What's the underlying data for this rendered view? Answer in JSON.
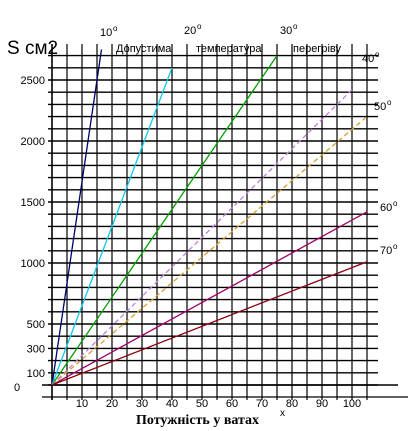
{
  "chart_data": {
    "type": "line",
    "ylabel": "S см2",
    "xlabel": "Потужність у ватах",
    "xlabel_suffix": "x",
    "annotation": [
      "Допустима",
      "температура",
      "перегріву"
    ],
    "degree_symbol": "o",
    "xlim": [
      0,
      105
    ],
    "ylim": [
      0,
      2750
    ],
    "x_ticks": [
      10,
      20,
      30,
      40,
      50,
      60,
      70,
      80,
      90,
      100
    ],
    "y_ticks": [
      0,
      100,
      300,
      500,
      1000,
      1500,
      2000,
      2500
    ],
    "grid": true,
    "series": [
      {
        "name": "10",
        "color": "#00006a",
        "x": [
          0,
          16.5
        ],
        "y": [
          0,
          2750
        ]
      },
      {
        "name": "20",
        "color": "#10c8e8",
        "x": [
          0,
          40
        ],
        "y": [
          0,
          2600
        ]
      },
      {
        "name": "30",
        "color": "#00a000",
        "x": [
          0,
          75
        ],
        "y": [
          0,
          2700
        ]
      },
      {
        "name": "40",
        "color": "#c080d8",
        "x": [
          0,
          100
        ],
        "y": [
          0,
          2420
        ]
      },
      {
        "name": "50",
        "color": "#d8a030",
        "x": [
          0,
          105
        ],
        "y": [
          0,
          2200
        ]
      },
      {
        "name": "60",
        "color": "#a0006a",
        "x": [
          0,
          105
        ],
        "y": [
          0,
          1420
        ]
      },
      {
        "name": "70",
        "color": "#8a0010",
        "x": [
          0,
          105
        ],
        "y": [
          0,
          1010
        ]
      }
    ]
  }
}
